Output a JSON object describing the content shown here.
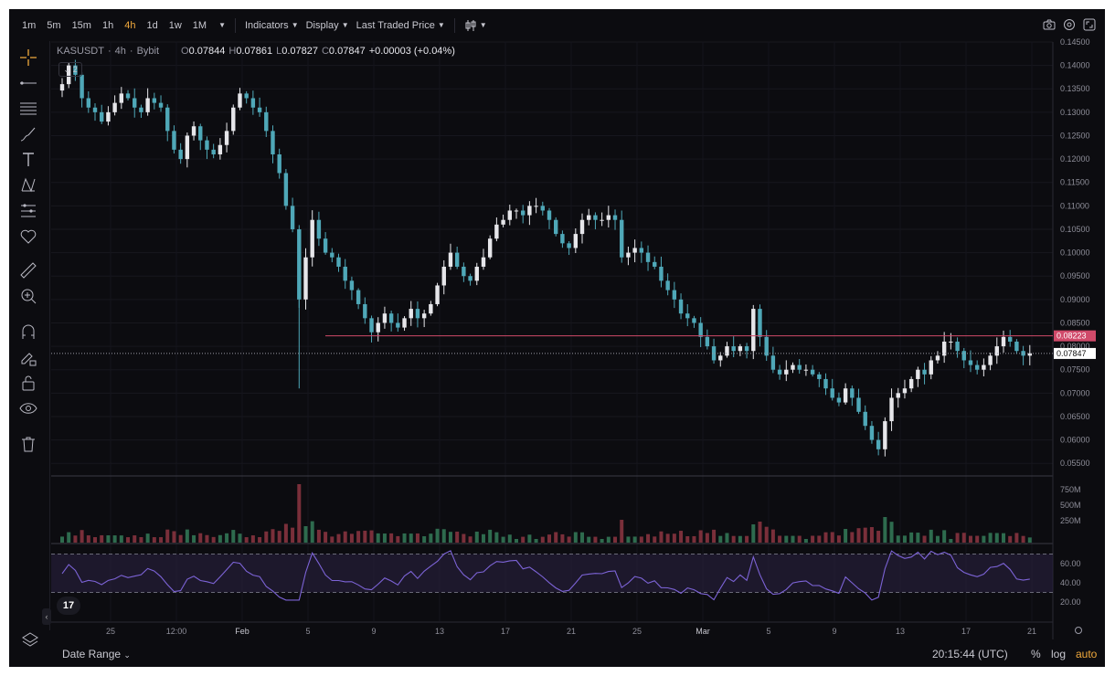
{
  "toolbar": {
    "timeframes": [
      "1m",
      "5m",
      "15m",
      "1h",
      "4h",
      "1d",
      "1w",
      "1M"
    ],
    "active_timeframe": "4h",
    "indicators_label": "Indicators",
    "display_label": "Display",
    "price_type_label": "Last Traded Price"
  },
  "legend": {
    "symbol": "KASUSDT",
    "interval": "4h",
    "exchange": "Bybit",
    "o_label": "O",
    "o_value": "0.07844",
    "h_label": "H",
    "h_value": "0.07861",
    "l_label": "L",
    "l_value": "0.07827",
    "c_label": "C",
    "c_value": "0.07847",
    "change": "+0.00003 (+0.04%)",
    "collapsed_count": "2"
  },
  "price_axis": {
    "labels": [
      "0.14500",
      "0.14000",
      "0.13500",
      "0.13000",
      "0.12500",
      "0.12000",
      "0.11500",
      "0.11000",
      "0.10500",
      "0.10000",
      "0.09500",
      "0.09000",
      "0.08500",
      "0.08000",
      "0.07500",
      "0.07000",
      "0.06500",
      "0.06000",
      "0.05500"
    ],
    "alert_price": "0.08223",
    "last_price": "0.07847"
  },
  "volume_axis": {
    "labels": [
      "750M",
      "500M",
      "250M"
    ]
  },
  "rsi_axis": {
    "labels": [
      "60.00",
      "40.00",
      "20.00"
    ]
  },
  "time_axis": {
    "labels": [
      "25",
      "12:00",
      "Feb",
      "5",
      "9",
      "13",
      "17",
      "21",
      "25",
      "Mar",
      "5",
      "9",
      "13",
      "17",
      "21"
    ]
  },
  "bottom": {
    "date_range": "Date Range",
    "clock": "20:15:44 (UTC)",
    "percent": "%",
    "log": "log",
    "auto": "auto"
  },
  "colors": {
    "up": "#e6e6ea",
    "down": "#4fa8b8",
    "alert_line": "#d04a6a",
    "rsi_line": "#7c63d6",
    "rsi_band": "#2a2140",
    "accent": "#f0a93c"
  },
  "icons": [
    "crosshair-icon",
    "trend-line-icon",
    "fib-icon",
    "brush-icon",
    "text-icon",
    "pattern-icon",
    "forecast-icon",
    "heart-icon",
    "ruler-icon",
    "zoom-in-icon",
    "magnet-icon",
    "lock-draw-icon",
    "lock-icon",
    "eye-icon",
    "trash-icon",
    "layers-icon",
    "camera-icon",
    "settings-icon",
    "fullscreen-icon",
    "sun-icon"
  ],
  "chart_data": {
    "type": "candlestick",
    "symbol": "KASUSDT",
    "interval": "4h",
    "ylim": [
      0.0525,
      0.145
    ],
    "close_series": [
      0.136,
      0.14,
      0.138,
      0.133,
      0.131,
      0.13,
      0.128,
      0.13,
      0.132,
      0.134,
      0.133,
      0.131,
      0.13,
      0.133,
      0.132,
      0.131,
      0.126,
      0.122,
      0.12,
      0.125,
      0.127,
      0.124,
      0.122,
      0.121,
      0.123,
      0.126,
      0.131,
      0.134,
      0.133,
      0.131,
      0.13,
      0.126,
      0.121,
      0.117,
      0.11,
      0.105,
      0.09,
      0.099,
      0.107,
      0.103,
      0.1,
      0.099,
      0.097,
      0.094,
      0.092,
      0.089,
      0.086,
      0.083,
      0.085,
      0.087,
      0.085,
      0.084,
      0.086,
      0.088,
      0.086,
      0.087,
      0.089,
      0.093,
      0.097,
      0.1,
      0.097,
      0.095,
      0.094,
      0.097,
      0.099,
      0.103,
      0.106,
      0.107,
      0.109,
      0.109,
      0.108,
      0.11,
      0.11,
      0.109,
      0.107,
      0.104,
      0.102,
      0.101,
      0.104,
      0.107,
      0.108,
      0.107,
      0.107,
      0.108,
      0.107,
      0.099,
      0.1,
      0.101,
      0.1,
      0.098,
      0.097,
      0.094,
      0.092,
      0.09,
      0.087,
      0.086,
      0.085,
      0.082,
      0.08,
      0.077,
      0.078,
      0.08,
      0.079,
      0.08,
      0.079,
      0.088,
      0.082,
      0.078,
      0.075,
      0.074,
      0.075,
      0.076,
      0.075,
      0.075,
      0.074,
      0.073,
      0.071,
      0.069,
      0.068,
      0.071,
      0.069,
      0.066,
      0.063,
      0.06,
      0.058,
      0.064,
      0.069,
      0.07,
      0.071,
      0.073,
      0.075,
      0.074,
      0.077,
      0.078,
      0.081,
      0.081,
      0.079,
      0.077,
      0.076,
      0.075,
      0.076,
      0.078,
      0.08,
      0.082,
      0.081,
      0.079,
      0.078,
      0.0785
    ],
    "alert_level": 0.08223,
    "last_price": 0.07847
  }
}
